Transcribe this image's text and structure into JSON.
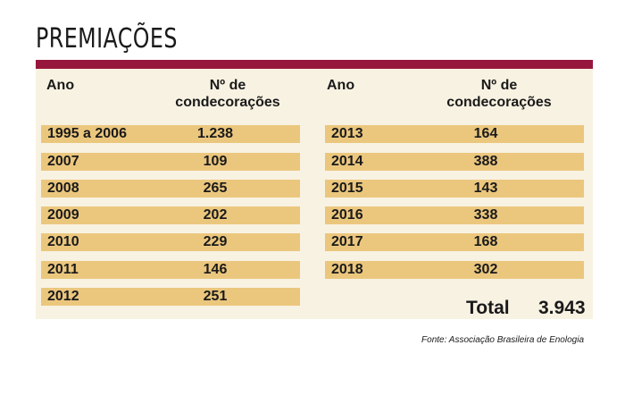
{
  "title": "PREMIAÇÕES",
  "headers": {
    "year": "Ano",
    "count_line1": "Nº de",
    "count_line2": "condecorações"
  },
  "left_rows": [
    {
      "year": "1995 a 2006",
      "count": "1.238"
    },
    {
      "year": "2007",
      "count": "109"
    },
    {
      "year": "2008",
      "count": "265"
    },
    {
      "year": "2009",
      "count": "202"
    },
    {
      "year": "2010",
      "count": "229"
    },
    {
      "year": "2011",
      "count": "146"
    },
    {
      "year": "2012",
      "count": "251"
    }
  ],
  "right_rows": [
    {
      "year": "2013",
      "count": "164"
    },
    {
      "year": "2014",
      "count": "388"
    },
    {
      "year": "2015",
      "count": "143"
    },
    {
      "year": "2016",
      "count": "338"
    },
    {
      "year": "2017",
      "count": "168"
    },
    {
      "year": "2018",
      "count": "302"
    }
  ],
  "total": {
    "label": "Total",
    "value": "3.943"
  },
  "source": "Fonte: Associação Brasileira de Enologia",
  "colors": {
    "accent_bar": "#97163d",
    "panel_bg": "#f8f2e2",
    "row_bg": "#ebc77e"
  }
}
